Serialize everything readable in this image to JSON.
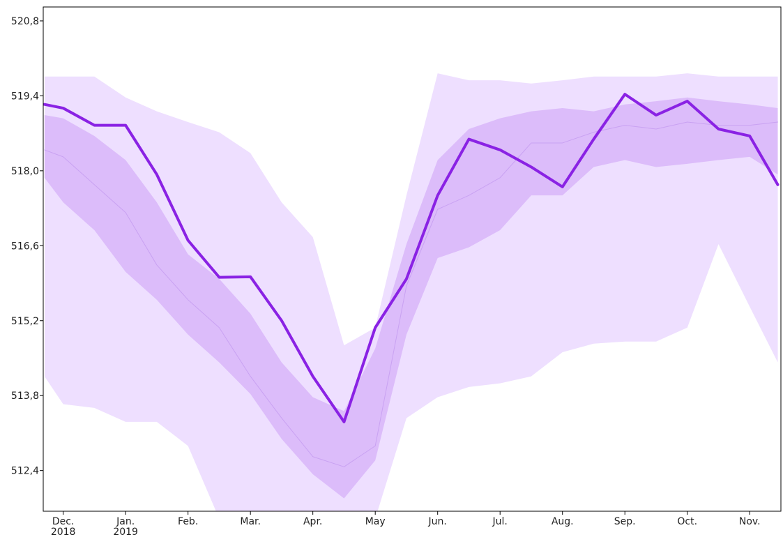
{
  "chart_data": {
    "type": "band-line",
    "xlim": [
      -0.32,
      11.5
    ],
    "ylim": [
      511.64,
      521.06
    ],
    "xticks": [
      {
        "value": 0,
        "label": "Dec.\n2018"
      },
      {
        "value": 1,
        "label": "Jan.\n2019"
      },
      {
        "value": 2,
        "label": "Feb."
      },
      {
        "value": 3,
        "label": "Mar."
      },
      {
        "value": 4,
        "label": "Apr."
      },
      {
        "value": 5,
        "label": "May"
      },
      {
        "value": 6,
        "label": "Jun."
      },
      {
        "value": 7,
        "label": "Jul."
      },
      {
        "value": 8,
        "label": "Aug."
      },
      {
        "value": 9,
        "label": "Sep."
      },
      {
        "value": 10,
        "label": "Oct."
      },
      {
        "value": 11,
        "label": "Nov."
      }
    ],
    "yticks": [
      {
        "value": 512.4,
        "label": "512,4"
      },
      {
        "value": 513.8,
        "label": "513,8"
      },
      {
        "value": 515.2,
        "label": "515,2"
      },
      {
        "value": 516.6,
        "label": "516,6"
      },
      {
        "value": 518.0,
        "label": "518,0"
      },
      {
        "value": 519.4,
        "label": "519,4"
      },
      {
        "value": 520.8,
        "label": "520,8"
      }
    ],
    "x": [
      -0.3,
      0,
      0.5,
      1,
      1.5,
      2,
      2.5,
      3,
      3.5,
      4,
      4.5,
      5,
      5.5,
      6,
      6.5,
      7,
      7.5,
      8,
      8.5,
      9,
      9.5,
      10,
      10.5,
      11,
      11.45
    ],
    "bands": [
      {
        "color": "#eedfff",
        "upper": [
          519.76,
          519.76,
          519.76,
          519.37,
          519.11,
          518.91,
          518.72,
          518.33,
          517.41,
          516.76,
          514.74,
          515.07,
          517.54,
          519.82,
          519.69,
          519.69,
          519.63,
          519.69,
          519.76,
          519.76,
          519.76,
          519.82,
          519.76,
          519.76,
          519.76
        ],
        "lower": [
          514.16,
          513.64,
          513.57,
          513.31,
          513.31,
          512.86,
          511.5,
          511.5,
          511.5,
          511.5,
          511.5,
          511.5,
          513.38,
          513.77,
          513.96,
          514.03,
          514.16,
          514.61,
          514.77,
          514.81,
          514.81,
          515.07,
          516.63,
          515.46,
          514.42
        ]
      },
      {
        "color": "#dcbcfa",
        "upper": [
          519.04,
          518.98,
          518.65,
          518.2,
          517.41,
          516.44,
          515.98,
          515.33,
          514.42,
          513.77,
          513.51,
          514.68,
          516.63,
          518.2,
          518.78,
          518.98,
          519.11,
          519.17,
          519.11,
          519.24,
          519.3,
          519.37,
          519.3,
          519.24,
          519.17
        ],
        "lower": [
          517.87,
          517.41,
          516.89,
          516.11,
          515.59,
          514.94,
          514.42,
          513.83,
          512.99,
          512.33,
          511.88,
          512.59,
          514.94,
          516.37,
          516.57,
          516.89,
          517.54,
          517.54,
          518.07,
          518.2,
          518.07,
          518.13,
          518.2,
          518.26,
          517.93
        ]
      }
    ],
    "series": [
      {
        "color": "#c9a2f2",
        "width": 1,
        "values": [
          518.39,
          518.26,
          517.74,
          517.22,
          516.24,
          515.59,
          515.07,
          514.16,
          513.38,
          512.66,
          512.47,
          512.86,
          515.85,
          517.28,
          517.54,
          517.87,
          518.52,
          518.52,
          518.72,
          518.85,
          518.78,
          518.91,
          518.85,
          518.85,
          518.91
        ]
      },
      {
        "color": "#8a22e4",
        "width": 4,
        "values": [
          519.24,
          519.17,
          518.85,
          518.85,
          517.93,
          516.7,
          516.01,
          516.02,
          515.2,
          514.16,
          513.31,
          515.07,
          515.98,
          517.54,
          518.59,
          518.39,
          518.07,
          517.7,
          518.59,
          519.43,
          519.04,
          519.3,
          518.78,
          518.65,
          517.74
        ]
      }
    ]
  }
}
